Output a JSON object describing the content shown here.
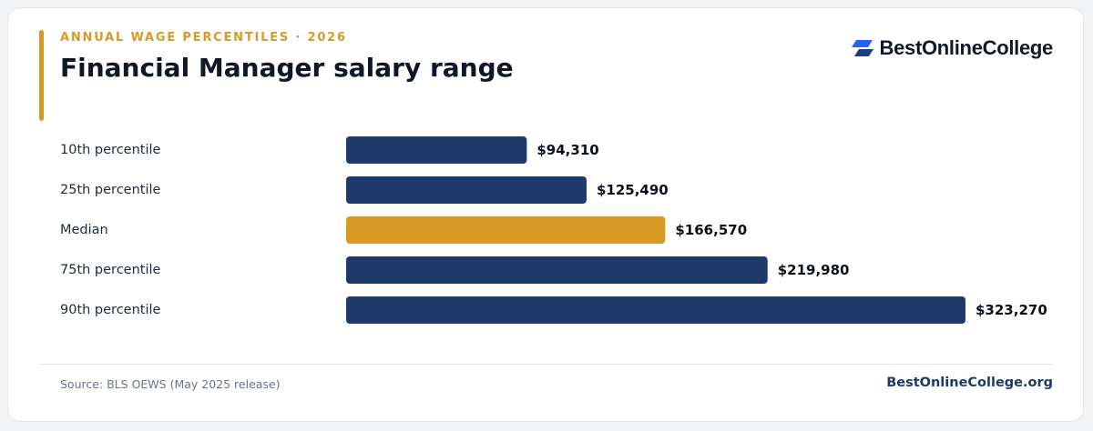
{
  "header": {
    "kicker": "ANNUAL WAGE PERCENTILES · 2026",
    "title": "Financial Manager salary range"
  },
  "logo": {
    "text": "BestOnlineCollege",
    "icon": "stacked-parallelogram-logo-icon"
  },
  "colors": {
    "bar": "#1e3a6b",
    "highlight": "#d99a25",
    "label": "#1f2937",
    "value": "#0b0f19"
  },
  "chart_data": {
    "type": "bar",
    "orientation": "horizontal",
    "categories": [
      "10th percentile",
      "25th percentile",
      "Median",
      "75th percentile",
      "90th percentile"
    ],
    "values": [
      94310,
      125490,
      166570,
      219980,
      323270
    ],
    "value_labels": [
      "$94,310",
      "$125,490",
      "$166,570",
      "$219,980",
      "$323,270"
    ],
    "highlight_category": "Median",
    "xlim": [
      0,
      323270
    ],
    "grid": false,
    "legend": "none"
  },
  "footer": {
    "source": "Source: BLS OEWS (May 2025 release)",
    "site": "BestOnlineCollege.org"
  }
}
